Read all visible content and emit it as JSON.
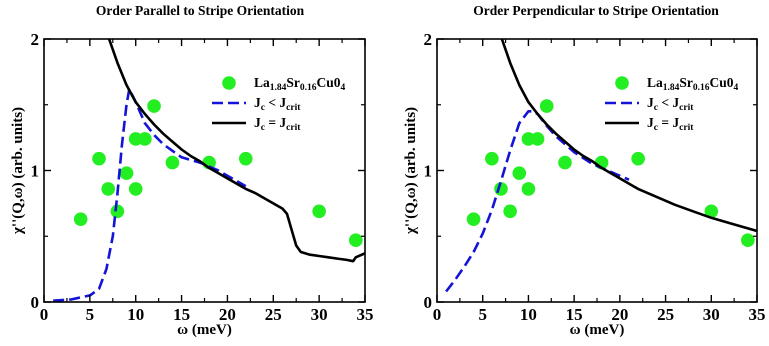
{
  "chart_data": [
    {
      "type": "line",
      "title": "Order Parallel to Stripe Orientation",
      "xlabel": "ω (meV)",
      "ylabel": "χ''(Q,ω) (arb. units)",
      "xlim": [
        0,
        35
      ],
      "ylim": [
        0,
        2
      ],
      "xticks": [
        "0",
        "5",
        "10",
        "15",
        "20",
        "25",
        "30",
        "35"
      ],
      "yticks": [
        "0",
        "1",
        "2"
      ],
      "legend_position": "top-right",
      "series": [
        {
          "name": "La1.84Sr0.16Cu04",
          "legend_parts": {
            "base": "La",
            "sub1": "1.84",
            "mid": "Sr",
            "sub2": "0.16",
            "end": "Cu0",
            "sub3": "4"
          },
          "kind": "scatter",
          "color": "#22ee22",
          "x": [
            4,
            6,
            7,
            8,
            9,
            10,
            10,
            11,
            12,
            14,
            18,
            22,
            30,
            34
          ],
          "y": [
            0.63,
            1.09,
            0.86,
            0.69,
            0.98,
            1.24,
            0.86,
            1.24,
            1.49,
            1.06,
            1.06,
            1.09,
            0.69,
            0.47
          ]
        },
        {
          "name": "Jc < Jcrit",
          "legend_parts": {
            "base": "J",
            "sub": "c",
            "op": " < J",
            "sub2": "crit"
          },
          "kind": "line",
          "style": "dashed",
          "color": "#1414d8",
          "x": [
            1,
            3,
            5,
            6,
            6.8,
            7.5,
            8,
            8.5,
            9,
            9.3,
            10,
            11,
            12,
            13,
            15,
            17,
            19,
            20,
            21,
            22
          ],
          "y": [
            0.01,
            0.02,
            0.05,
            0.1,
            0.25,
            0.5,
            0.82,
            1.2,
            1.5,
            1.62,
            1.52,
            1.36,
            1.27,
            1.2,
            1.1,
            1.06,
            1.0,
            0.96,
            0.92,
            0.88
          ]
        },
        {
          "name": "Jc = Jcrit",
          "legend_parts": {
            "base": "J",
            "sub": "c",
            "op": " = J",
            "sub2": "crit"
          },
          "kind": "line",
          "style": "solid",
          "color": "#000000",
          "x": [
            7,
            8,
            9,
            10,
            11,
            12,
            13,
            14,
            15,
            16,
            17,
            18,
            19,
            20,
            21,
            22,
            23,
            24,
            25,
            26,
            26.5,
            27,
            27.5,
            28,
            29,
            30,
            31,
            32,
            33,
            33.7,
            34,
            35
          ],
          "y": [
            2.02,
            1.82,
            1.65,
            1.52,
            1.43,
            1.35,
            1.28,
            1.22,
            1.16,
            1.11,
            1.07,
            1.02,
            0.98,
            0.94,
            0.9,
            0.86,
            0.83,
            0.79,
            0.75,
            0.71,
            0.67,
            0.55,
            0.43,
            0.38,
            0.36,
            0.35,
            0.34,
            0.33,
            0.32,
            0.31,
            0.34,
            0.37
          ]
        }
      ]
    },
    {
      "type": "line",
      "title": "Order Perpendicular to Stripe Orientation",
      "xlabel": "ω (meV)",
      "ylabel": "χ''(Q,ω) (arb. units)",
      "xlim": [
        0,
        35
      ],
      "ylim": [
        0,
        2
      ],
      "xticks": [
        "0",
        "5",
        "10",
        "15",
        "20",
        "25",
        "30",
        "35"
      ],
      "yticks": [
        "0",
        "1",
        "2"
      ],
      "legend_position": "top-right",
      "series": [
        {
          "name": "La1.84Sr0.16Cu04",
          "legend_parts": {
            "base": "La",
            "sub1": "1.84",
            "mid": "Sr",
            "sub2": "0.16",
            "end": "Cu0",
            "sub3": "4"
          },
          "kind": "scatter",
          "color": "#22ee22",
          "x": [
            4,
            6,
            7,
            8,
            9,
            10,
            10,
            11,
            12,
            14,
            18,
            22,
            30,
            34
          ],
          "y": [
            0.63,
            1.09,
            0.86,
            0.69,
            0.98,
            1.24,
            0.86,
            1.24,
            1.49,
            1.06,
            1.06,
            1.09,
            0.69,
            0.47
          ]
        },
        {
          "name": "Jc < Jcrit",
          "legend_parts": {
            "base": "J",
            "sub": "c",
            "op": " < J",
            "sub2": "crit"
          },
          "kind": "line",
          "style": "dashed",
          "color": "#1414d8",
          "x": [
            1,
            2,
            3,
            4,
            5,
            6,
            7,
            8,
            9,
            10,
            10.5,
            11,
            12,
            13,
            15,
            17,
            19,
            21
          ],
          "y": [
            0.08,
            0.17,
            0.27,
            0.38,
            0.52,
            0.7,
            0.92,
            1.15,
            1.36,
            1.45,
            1.45,
            1.43,
            1.34,
            1.26,
            1.14,
            1.05,
            0.99,
            0.93
          ]
        },
        {
          "name": "Jc = Jcrit",
          "legend_parts": {
            "base": "J",
            "sub": "c",
            "op": " = J",
            "sub2": "crit"
          },
          "kind": "line",
          "style": "solid",
          "color": "#000000",
          "x": [
            7,
            8,
            9,
            10,
            11,
            12,
            13,
            14,
            15,
            16,
            17,
            18,
            19,
            20,
            22,
            24,
            26,
            28,
            30,
            32,
            34,
            35
          ],
          "y": [
            2.02,
            1.82,
            1.65,
            1.52,
            1.43,
            1.35,
            1.28,
            1.22,
            1.16,
            1.11,
            1.07,
            1.02,
            0.98,
            0.94,
            0.86,
            0.8,
            0.74,
            0.69,
            0.64,
            0.6,
            0.56,
            0.54
          ]
        }
      ]
    }
  ]
}
